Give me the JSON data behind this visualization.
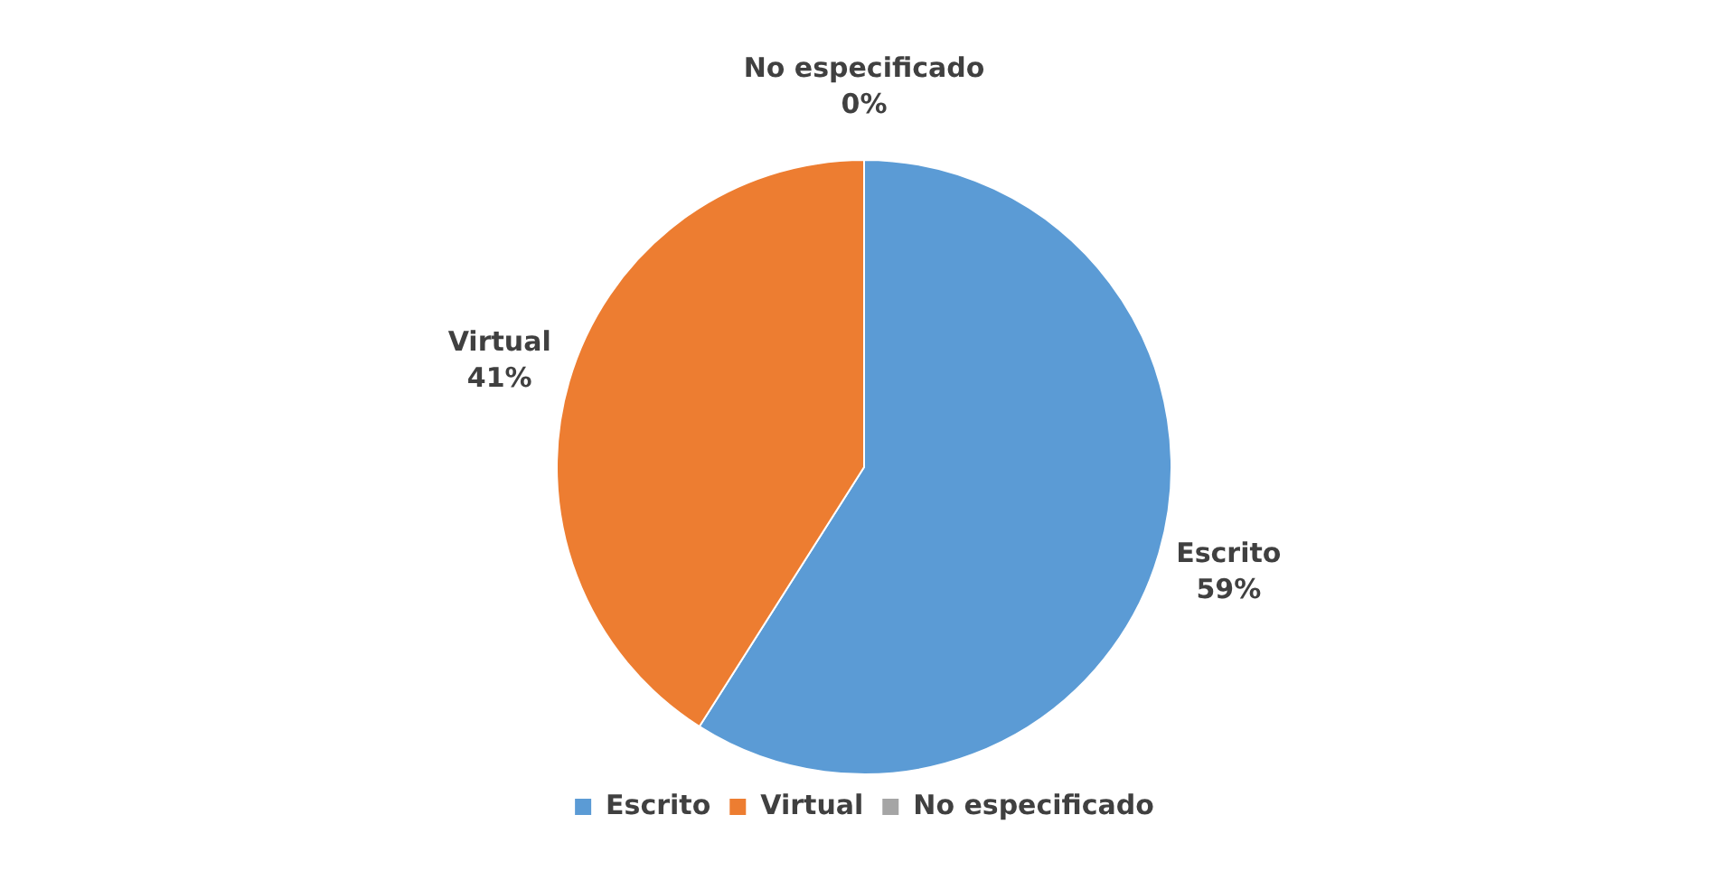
{
  "chart_data": {
    "type": "pie",
    "categories": [
      "Escrito",
      "Virtual",
      "No especificado"
    ],
    "values": [
      59,
      41,
      0
    ],
    "colors": [
      "#5b9bd5",
      "#ed7d31",
      "#a5a5a5"
    ],
    "value_labels": [
      "59%",
      "41%",
      "0%"
    ],
    "legend": "bottom"
  }
}
